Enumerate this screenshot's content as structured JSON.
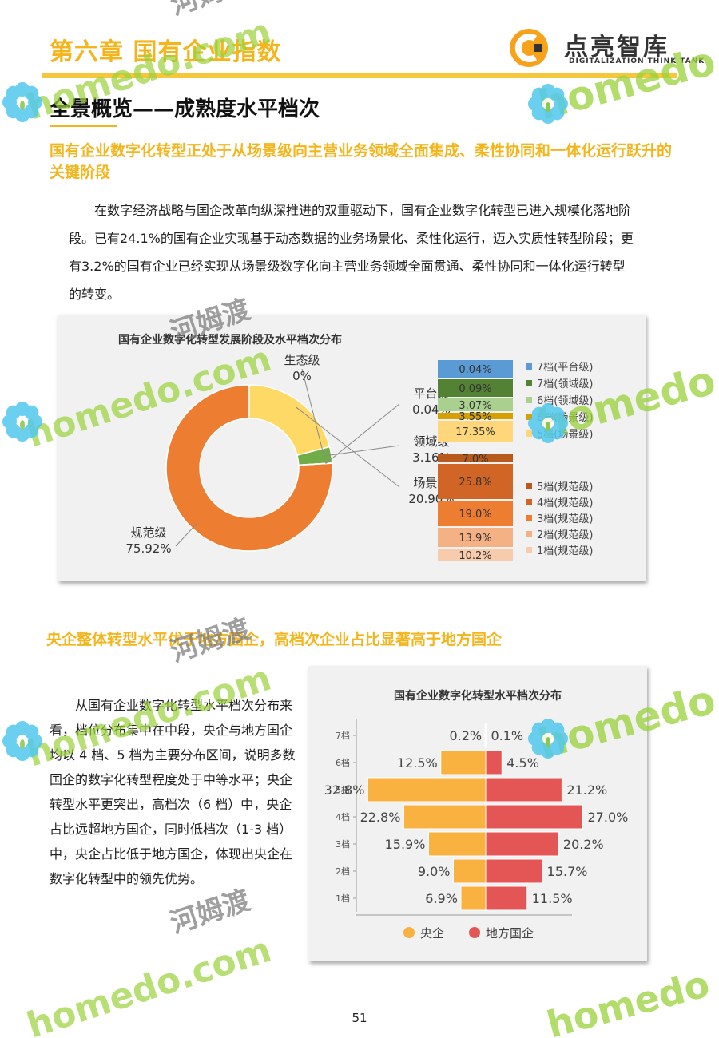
{
  "header": {
    "chapter_title": "第六章 国有企业指数",
    "logo_name": "点亮智库",
    "logo_sub": "DIGITALIZATION THINK TANK"
  },
  "section": {
    "title": "全景概览——成熟度水平档次",
    "subhead": "国有企业数字化转型正处于从场景级向主营业务领域全面集成、柔性协同和一体化运行跃升的关键阶段",
    "paragraph": "在数字经济战略与国企改革向纵深推进的双重驱动下，国有企业数字化转型已进入规模化落地阶段。已有24.1%的国有企业实现基于动态数据的业务场景化、柔性化运行，迈入实质性转型阶段；更有3.2%的国有企业已经实现从场景级数字化向主营业务领域全面贯通、柔性协同和一体化运行转型的转变。"
  },
  "section2": {
    "subhead": "央企整体转型水平优于地方国企，高档次企业占比显著高于地方国企",
    "paragraph": "从国有企业数字化转型水平档次分布来看，档位分布集中在中段，央企与地方国企均以 4 档、5 档为主要分布区间，说明多数国企的数字化转型程度处于中等水平；央企转型水平更突出，高档次（6 档）中，央企占比远超地方国企，同时低档次（1-3 档）中，央企占比低于地方国企，体现出央企在数字化转型中的领先优势。"
  },
  "watermark": {
    "brand": "homedo",
    "url": "homedo.com",
    "cn": "河姆渡"
  },
  "chart_data": [
    {
      "type": "pie",
      "title": "国有企业数字化转型发展阶段及水平档次分布",
      "slices": [
        {
          "label": "规范级",
          "value_label": "75.92%",
          "value": 75.92,
          "color": "#ed7d31"
        },
        {
          "label": "场景级",
          "value_label": "20.90%",
          "value": 20.9,
          "color": "#ffd966"
        },
        {
          "label": "领域级",
          "value_label": "3.16%",
          "value": 3.16,
          "color": "#70ad47"
        },
        {
          "label": "平台级",
          "value_label": "0.04%",
          "value": 0.04,
          "color": "#5b9bd5"
        },
        {
          "label": "生态级",
          "value_label": "0%",
          "value": 0,
          "color": "#a5a5a5"
        }
      ],
      "stack_upper": {
        "segments": [
          {
            "label": "0.04%",
            "value": 0.04,
            "color": "#5b9bd5"
          },
          {
            "label": "0.09%",
            "value": 0.09,
            "color": "#548235"
          },
          {
            "label": "3.07%",
            "value": 3.07,
            "color": "#a9d08e"
          },
          {
            "label": "3.55%",
            "value": 3.55,
            "color": "#d6a000"
          },
          {
            "label": "17.35%",
            "value": 17.35,
            "color": "#ffd77a"
          }
        ],
        "legend": [
          {
            "label": "7档(平台级)",
            "color": "#5b9bd5"
          },
          {
            "label": "7档(领域级)",
            "color": "#548235"
          },
          {
            "label": "6档(领域级)",
            "color": "#a9d08e"
          },
          {
            "label": "6档(场景级)",
            "color": "#d6a000"
          },
          {
            "label": "5档(场景级)",
            "color": "#ffd77a"
          }
        ]
      },
      "stack_lower": {
        "segments": [
          {
            "label": "7.0%",
            "value": 7.0,
            "color": "#b85a1b"
          },
          {
            "label": "25.8%",
            "value": 25.8,
            "color": "#d06525"
          },
          {
            "label": "19.0%",
            "value": 19.0,
            "color": "#ed7d31"
          },
          {
            "label": "13.9%",
            "value": 13.9,
            "color": "#f4b183"
          },
          {
            "label": "10.2%",
            "value": 10.2,
            "color": "#f8cbad"
          }
        ],
        "legend": [
          {
            "label": "5档(规范级)",
            "color": "#b85a1b"
          },
          {
            "label": "4档(规范级)",
            "color": "#d06525"
          },
          {
            "label": "3档(规范级)",
            "color": "#ed7d31"
          },
          {
            "label": "2档(规范级)",
            "color": "#f4b183"
          },
          {
            "label": "1档(规范级)",
            "color": "#f8cbad"
          }
        ]
      }
    },
    {
      "type": "bar",
      "title": "国有企业数字化转型水平档次分布",
      "categories": [
        "7档",
        "6档",
        "5档",
        "4档",
        "3档",
        "2档",
        "1档"
      ],
      "series": [
        {
          "name": "央企",
          "color": "#f9b140",
          "values": [
            0.2,
            12.5,
            32.8,
            22.8,
            15.9,
            9.0,
            6.9
          ],
          "labels": [
            "0.2%",
            "12.5%",
            "32.8%",
            "22.8%",
            "15.9%",
            "9.0%",
            "6.9%"
          ]
        },
        {
          "name": "地方国企",
          "color": "#e45656",
          "values": [
            0.1,
            4.5,
            21.2,
            27.0,
            20.2,
            15.7,
            11.5
          ],
          "labels": [
            "0.1%",
            "4.5%",
            "21.2%",
            "27.0%",
            "20.2%",
            "15.7%",
            "11.5%"
          ]
        }
      ]
    }
  ],
  "footer": {
    "page_number": "51"
  }
}
